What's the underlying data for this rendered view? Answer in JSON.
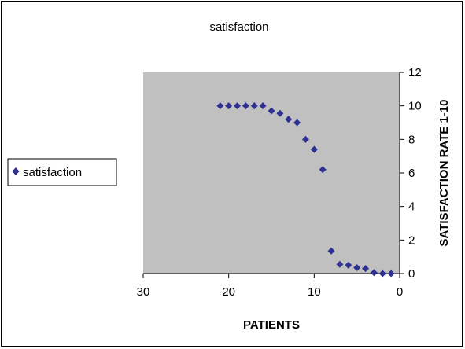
{
  "chart_data": {
    "type": "scatter",
    "title": "satisfaction",
    "xlabel": "PATIENTS",
    "ylabel": "SATISFACTION RATE 1-10",
    "xlim": [
      30,
      0
    ],
    "x_reversed": true,
    "ylim": [
      0,
      12
    ],
    "x_ticks": [
      "30",
      "20",
      "10",
      "0"
    ],
    "y_ticks": [
      "0",
      "2",
      "4",
      "6",
      "8",
      "10",
      "12"
    ],
    "y_axis_side": "right",
    "grid": false,
    "legend_position": "left",
    "plot_background": "#c0c0c0",
    "series": [
      {
        "name": "satisfaction",
        "color": "#2e3191",
        "marker": "diamond",
        "points": [
          {
            "x": 21,
            "y": 10.0
          },
          {
            "x": 20,
            "y": 10.0
          },
          {
            "x": 19,
            "y": 10.0
          },
          {
            "x": 18,
            "y": 10.0
          },
          {
            "x": 17,
            "y": 10.0
          },
          {
            "x": 16,
            "y": 10.0
          },
          {
            "x": 15,
            "y": 9.7
          },
          {
            "x": 14,
            "y": 9.55
          },
          {
            "x": 13,
            "y": 9.2
          },
          {
            "x": 12,
            "y": 9.0
          },
          {
            "x": 11,
            "y": 8.0
          },
          {
            "x": 10,
            "y": 7.4
          },
          {
            "x": 9,
            "y": 6.2
          },
          {
            "x": 8,
            "y": 1.35
          },
          {
            "x": 7,
            "y": 0.55
          },
          {
            "x": 6,
            "y": 0.5
          },
          {
            "x": 5,
            "y": 0.35
          },
          {
            "x": 4,
            "y": 0.3
          },
          {
            "x": 3,
            "y": 0.05
          },
          {
            "x": 2,
            "y": 0.0
          },
          {
            "x": 1,
            "y": 0.0
          }
        ]
      }
    ]
  }
}
